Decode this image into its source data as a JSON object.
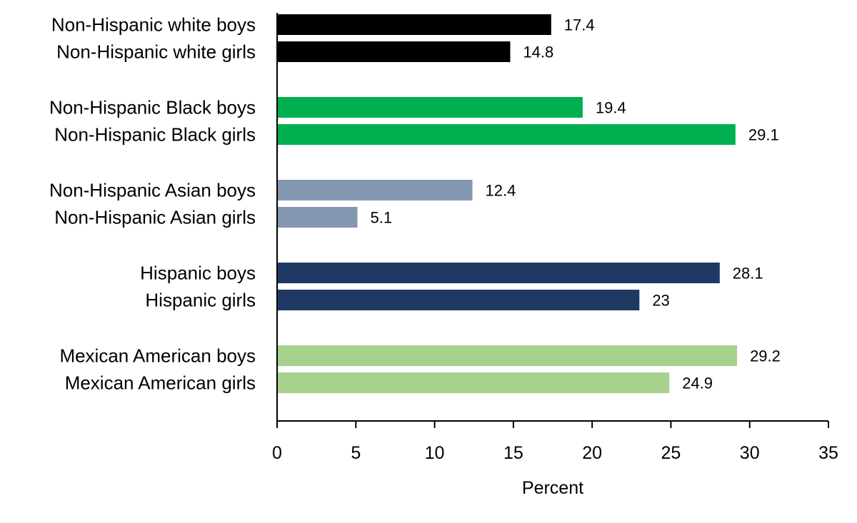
{
  "chart_data": {
    "type": "bar",
    "orientation": "horizontal",
    "xlabel": "Percent",
    "xlim": [
      0,
      35
    ],
    "xticks": [
      0,
      5,
      10,
      15,
      20,
      25,
      30,
      35
    ],
    "grid": false,
    "legend": "none",
    "groups": [
      {
        "color": "#000000",
        "bars": [
          {
            "label": "Non-Hispanic white boys",
            "value": 17.4,
            "value_label": "17.4"
          },
          {
            "label": "Non-Hispanic white girls",
            "value": 14.8,
            "value_label": "14.8"
          }
        ]
      },
      {
        "color": "#00b050",
        "bars": [
          {
            "label": "Non-Hispanic Black boys",
            "value": 19.4,
            "value_label": "19.4"
          },
          {
            "label": "Non-Hispanic Black girls",
            "value": 29.1,
            "value_label": "29.1"
          }
        ]
      },
      {
        "color": "#8497b0",
        "bars": [
          {
            "label": "Non-Hispanic Asian boys",
            "value": 12.4,
            "value_label": "12.4"
          },
          {
            "label": "Non-Hispanic Asian girls",
            "value": 5.1,
            "value_label": "5.1"
          }
        ]
      },
      {
        "color": "#203864",
        "bars": [
          {
            "label": "Hispanic boys",
            "value": 28.1,
            "value_label": "28.1"
          },
          {
            "label": "Hispanic girls",
            "value": 23,
            "value_label": "23"
          }
        ]
      },
      {
        "color": "#a9d18e",
        "bars": [
          {
            "label": "Mexican American boys",
            "value": 29.2,
            "value_label": "29.2"
          },
          {
            "label": "Mexican American girls",
            "value": 24.9,
            "value_label": "24.9"
          }
        ]
      }
    ]
  }
}
